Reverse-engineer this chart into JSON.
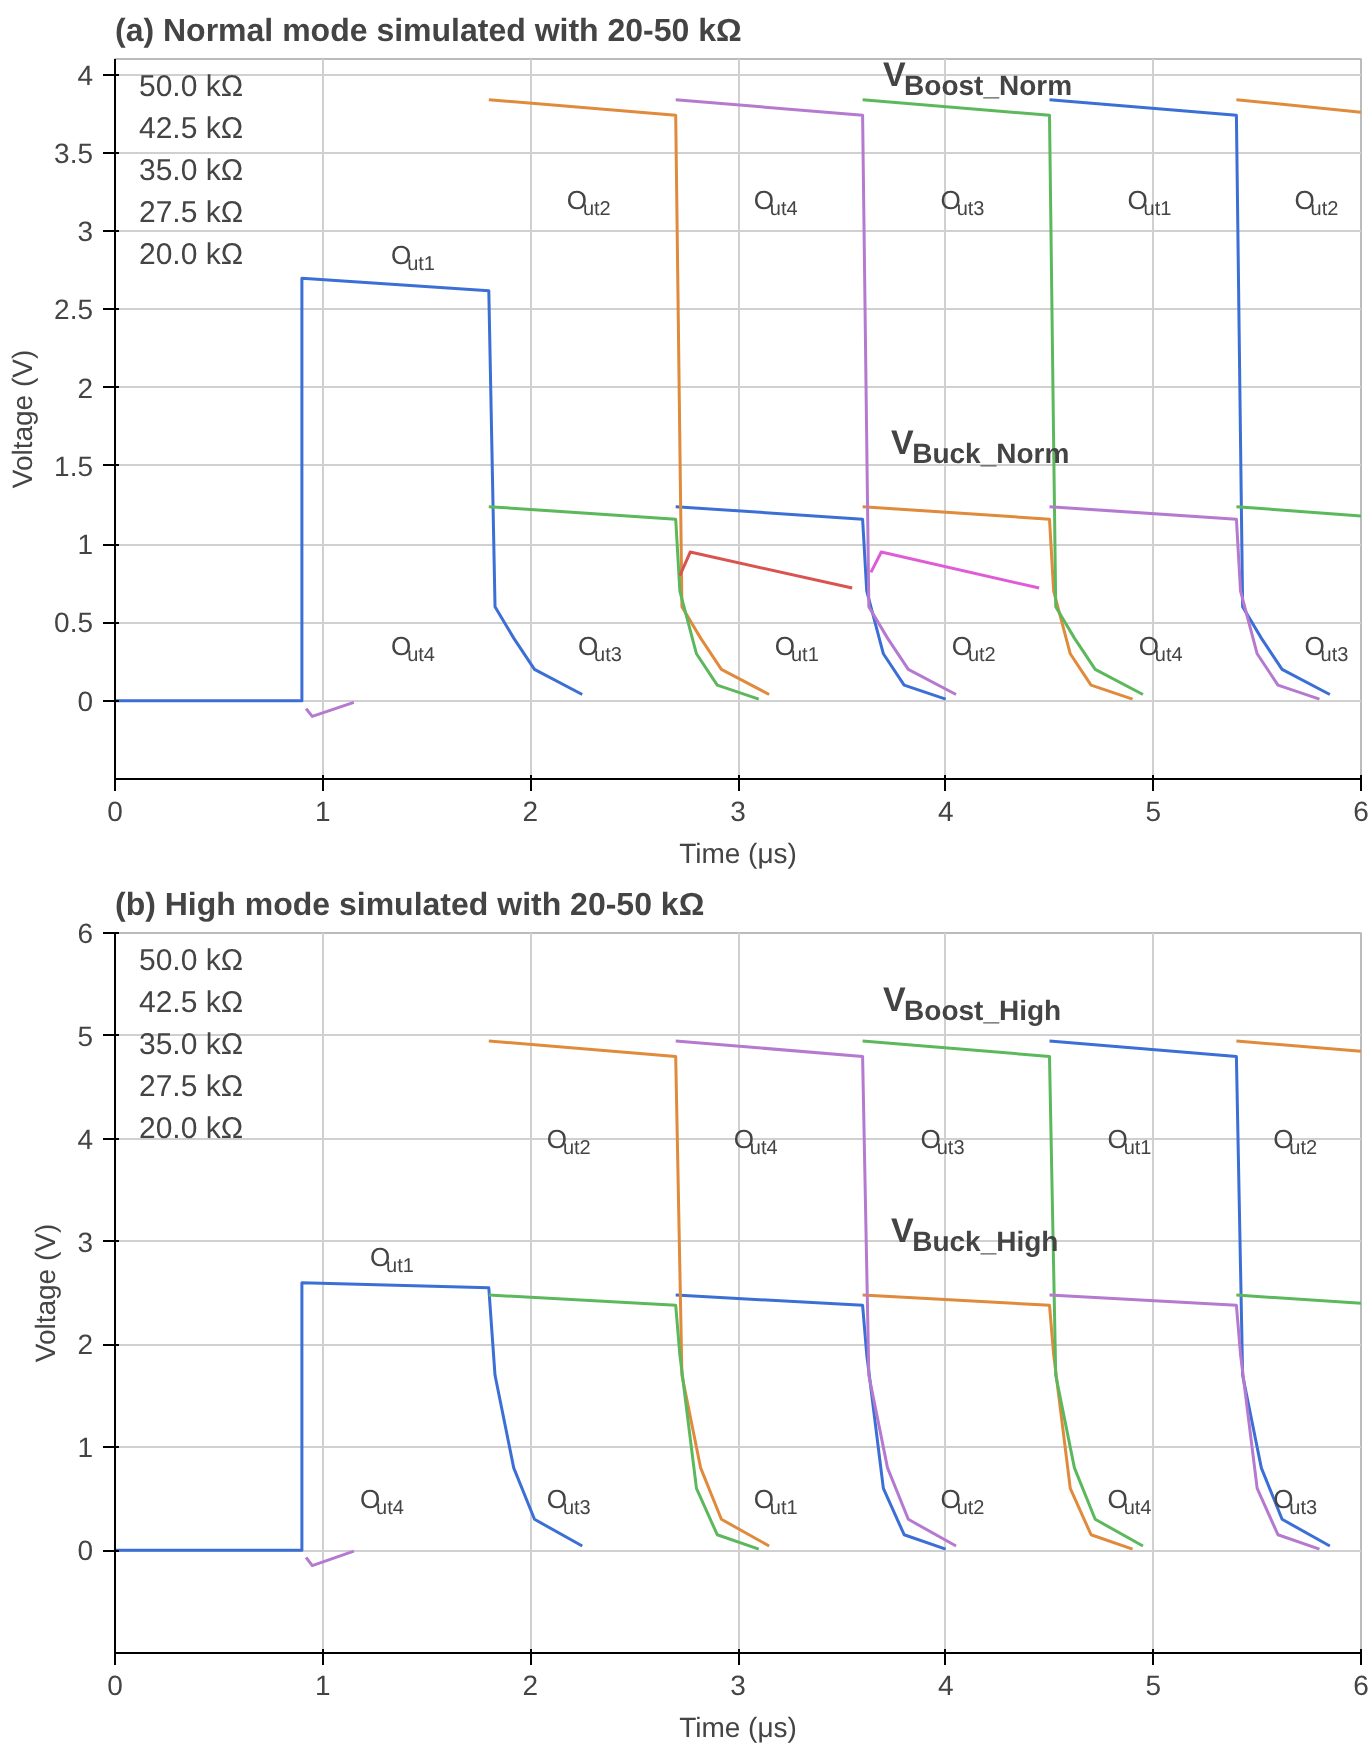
{
  "chart_data": [
    {
      "type": "line",
      "title": "(a) Normal mode simulated with 20-50 kΩ",
      "xlabel": "Time (μs)",
      "ylabel": "Voltage (V)",
      "xlim": [
        0,
        6
      ],
      "xticks": [
        0,
        1,
        2,
        3,
        4,
        5,
        6
      ],
      "ylim": [
        -0.5,
        4.1
      ],
      "yticks": [
        0,
        0.5,
        1,
        1.5,
        2,
        2.5,
        3,
        3.5,
        4
      ],
      "grid": true,
      "series": [
        {
          "color": "#3b6fd6",
          "x": [
            0,
            0.9,
            0.9,
            1.8,
            1.83,
            1.92,
            2.02,
            2.25
          ],
          "values": [
            0,
            0,
            2.7,
            2.62,
            0.6,
            0.4,
            0.2,
            0.04
          ]
        },
        {
          "color": "#3b6fd6",
          "x": [
            2.7,
            3.6,
            3.62,
            3.7,
            3.8,
            4.0
          ],
          "values": [
            1.24,
            1.16,
            0.7,
            0.3,
            0.1,
            0.01
          ]
        },
        {
          "color": "#3b6fd6",
          "x": [
            4.5,
            5.4,
            5.43,
            5.52,
            5.62,
            5.85
          ],
          "values": [
            3.84,
            3.74,
            0.6,
            0.4,
            0.2,
            0.04
          ]
        },
        {
          "color": "#e08a3c",
          "x": [
            1.8,
            2.7,
            2.73,
            2.82,
            2.92,
            3.15
          ],
          "values": [
            3.84,
            3.74,
            0.6,
            0.4,
            0.2,
            0.04
          ]
        },
        {
          "color": "#e08a3c",
          "x": [
            3.6,
            4.5,
            4.52,
            4.6,
            4.7,
            4.9
          ],
          "values": [
            1.24,
            1.16,
            0.7,
            0.3,
            0.1,
            0.01
          ]
        },
        {
          "color": "#e08a3c",
          "x": [
            5.4,
            6
          ],
          "values": [
            3.84,
            3.76
          ]
        },
        {
          "color": "#5cb85c",
          "x": [
            1.8,
            2.7,
            2.72,
            2.8,
            2.9,
            3.1
          ],
          "values": [
            1.24,
            1.16,
            0.7,
            0.3,
            0.1,
            0.01
          ]
        },
        {
          "color": "#5cb85c",
          "x": [
            3.6,
            4.5,
            4.53,
            4.62,
            4.72,
            4.95
          ],
          "values": [
            3.84,
            3.74,
            0.6,
            0.4,
            0.2,
            0.04
          ]
        },
        {
          "color": "#5cb85c",
          "x": [
            5.4,
            6
          ],
          "values": [
            1.24,
            1.18
          ]
        },
        {
          "color": "#b57ad0",
          "x": [
            0.92,
            0.95,
            1.15
          ],
          "values": [
            -0.05,
            -0.1,
            -0.01
          ]
        },
        {
          "color": "#b57ad0",
          "x": [
            2.7,
            3.6,
            3.63,
            3.72,
            3.82,
            4.05
          ],
          "values": [
            3.84,
            3.74,
            0.6,
            0.4,
            0.2,
            0.04
          ]
        },
        {
          "color": "#b57ad0",
          "x": [
            4.5,
            5.4,
            5.42,
            5.5,
            5.6,
            5.8
          ],
          "values": [
            1.24,
            1.16,
            0.7,
            0.3,
            0.1,
            0.01
          ]
        },
        {
          "color": "#d9534f",
          "x": [
            2.72,
            2.77,
            3.55
          ],
          "values": [
            0.8,
            0.95,
            0.72
          ]
        },
        {
          "color": "#e05cd6",
          "x": [
            3.64,
            3.69,
            4.45
          ],
          "values": [
            0.82,
            0.95,
            0.72
          ]
        }
      ],
      "annotations": [
        "50.0 kΩ",
        "42.5 kΩ",
        "35.0 kΩ",
        "27.5 kΩ",
        "20.0 kΩ",
        "V$_{Boost_Norm}$",
        "V$_{Buck_Norm}$",
        "O$_{ut1}$",
        "O$_{ut2}$",
        "O$_{ut4}$",
        "O$_{ut3}$",
        "O$_{ut1}$",
        "O$_{ut2}$",
        "O$_{ut4}$",
        "O$_{ut3}$",
        "O$_{ut1}$",
        "O$_{ut2}$",
        "O$_{ut4}$",
        "O$_{ut3}$"
      ]
    },
    {
      "type": "line",
      "title": "(b) High mode simulated with 20-50 kΩ",
      "xlabel": "Time (μs)",
      "ylabel": "Voltage (V)",
      "xlim": [
        0,
        6
      ],
      "xticks": [
        0,
        1,
        2,
        3,
        4,
        5,
        6
      ],
      "ylim": [
        -1,
        6
      ],
      "yticks": [
        0,
        1,
        2,
        3,
        4,
        5,
        6
      ],
      "grid": true,
      "series": [
        {
          "color": "#3b6fd6",
          "x": [
            0,
            0.9,
            0.9,
            1.8,
            1.83,
            1.92,
            2.02,
            2.25
          ],
          "values": [
            0,
            0,
            2.6,
            2.55,
            1.7,
            0.8,
            0.3,
            0.04
          ]
        },
        {
          "color": "#3b6fd6",
          "x": [
            2.7,
            3.6,
            3.62,
            3.7,
            3.8,
            4.0
          ],
          "values": [
            2.48,
            2.38,
            1.9,
            0.6,
            0.15,
            0.01
          ]
        },
        {
          "color": "#3b6fd6",
          "x": [
            4.5,
            5.4,
            5.43,
            5.52,
            5.62,
            5.85
          ],
          "values": [
            4.95,
            4.8,
            1.7,
            0.8,
            0.3,
            0.04
          ]
        },
        {
          "color": "#e08a3c",
          "x": [
            1.8,
            2.7,
            2.73,
            2.82,
            2.92,
            3.15
          ],
          "values": [
            4.95,
            4.8,
            1.7,
            0.8,
            0.3,
            0.04
          ]
        },
        {
          "color": "#e08a3c",
          "x": [
            3.6,
            4.5,
            4.52,
            4.6,
            4.7,
            4.9
          ],
          "values": [
            2.48,
            2.38,
            1.9,
            0.6,
            0.15,
            0.01
          ]
        },
        {
          "color": "#e08a3c",
          "x": [
            5.4,
            6
          ],
          "values": [
            4.95,
            4.85
          ]
        },
        {
          "color": "#5cb85c",
          "x": [
            1.8,
            2.7,
            2.72,
            2.8,
            2.9,
            3.1
          ],
          "values": [
            2.48,
            2.38,
            1.9,
            0.6,
            0.15,
            0.01
          ]
        },
        {
          "color": "#5cb85c",
          "x": [
            3.6,
            4.5,
            4.53,
            4.62,
            4.72,
            4.95
          ],
          "values": [
            4.95,
            4.8,
            1.7,
            0.8,
            0.3,
            0.04
          ]
        },
        {
          "color": "#5cb85c",
          "x": [
            5.4,
            6
          ],
          "values": [
            2.48,
            2.4
          ]
        },
        {
          "color": "#b57ad0",
          "x": [
            0.92,
            0.95,
            1.15
          ],
          "values": [
            -0.07,
            -0.15,
            -0.01
          ]
        },
        {
          "color": "#b57ad0",
          "x": [
            2.7,
            3.6,
            3.63,
            3.72,
            3.82,
            4.05
          ],
          "values": [
            4.95,
            4.8,
            1.7,
            0.8,
            0.3,
            0.04
          ]
        },
        {
          "color": "#b57ad0",
          "x": [
            4.5,
            5.4,
            5.42,
            5.5,
            5.6,
            5.8
          ],
          "values": [
            2.48,
            2.38,
            1.9,
            0.6,
            0.15,
            0.01
          ]
        }
      ],
      "annotations": [
        "50.0 kΩ",
        "42.5 kΩ",
        "35.0 kΩ",
        "27.5 kΩ",
        "20.0 kΩ",
        "V$_{Boost_High}$",
        "V$_{Buck_High}$",
        "O$_{ut1}$",
        "O$_{ut2}$",
        "O$_{ut4}$",
        "O$_{ut3}$",
        "O$_{ut1}$",
        "O$_{ut2}$",
        "O$_{ut4}$",
        "O$_{ut3}$",
        "O$_{ut1}$",
        "O$_{ut2}$",
        "O$_{ut4}$",
        "O$_{ut3}$"
      ]
    }
  ]
}
